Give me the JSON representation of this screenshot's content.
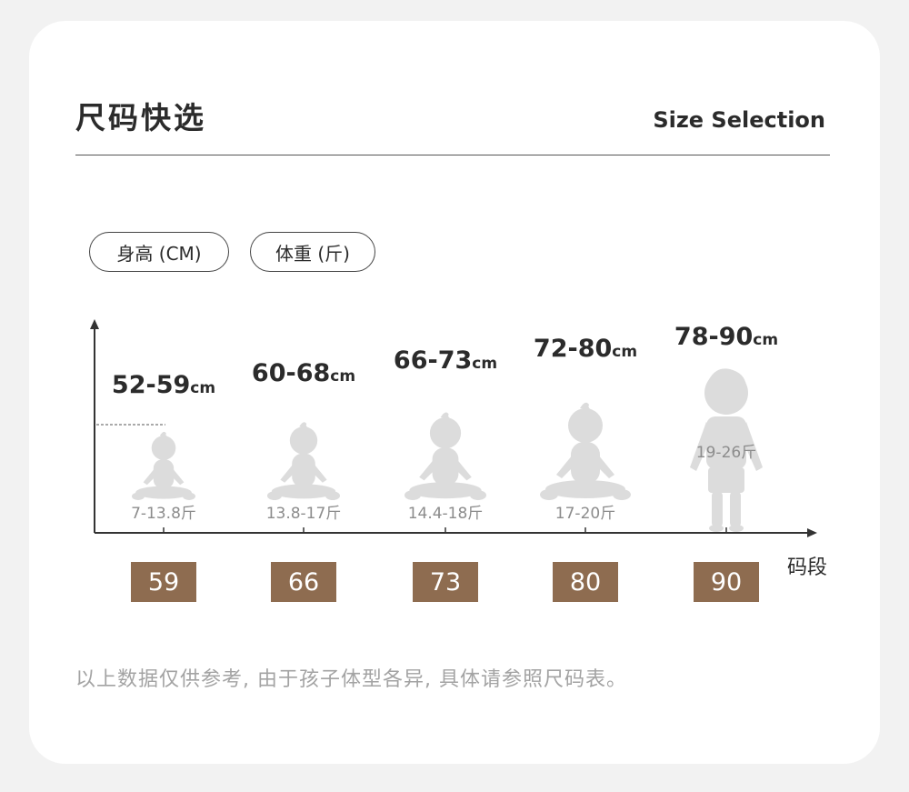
{
  "header": {
    "title_cn": "尺码快选",
    "title_en": "Size Selection"
  },
  "filters": {
    "height": "身高 (CM)",
    "weight": "体重 (斤)"
  },
  "chart_data": {
    "type": "other",
    "x_axis_label": "码段",
    "categories": [
      "59",
      "66",
      "73",
      "80",
      "90"
    ],
    "height_ranges": [
      {
        "range": "52-59",
        "unit": "cm"
      },
      {
        "range": "60-68",
        "unit": "cm"
      },
      {
        "range": "66-73",
        "unit": "cm"
      },
      {
        "range": "72-80",
        "unit": "cm"
      },
      {
        "range": "78-90",
        "unit": "cm"
      }
    ],
    "weight_ranges": [
      "7-13.8斤",
      "13.8-17斤",
      "14.4-18斤",
      "17-20斤",
      "19-26斤"
    ],
    "figures": [
      "sitting-baby",
      "sitting-baby",
      "sitting-baby",
      "sitting-baby",
      "standing-child"
    ],
    "colors": {
      "axis": "#333333",
      "figure": "#dcdcdc",
      "size_box": "#8e6c50"
    }
  },
  "note": "以上数据仅供参考, 由于孩子体型各异, 具体请参照尺码表。"
}
